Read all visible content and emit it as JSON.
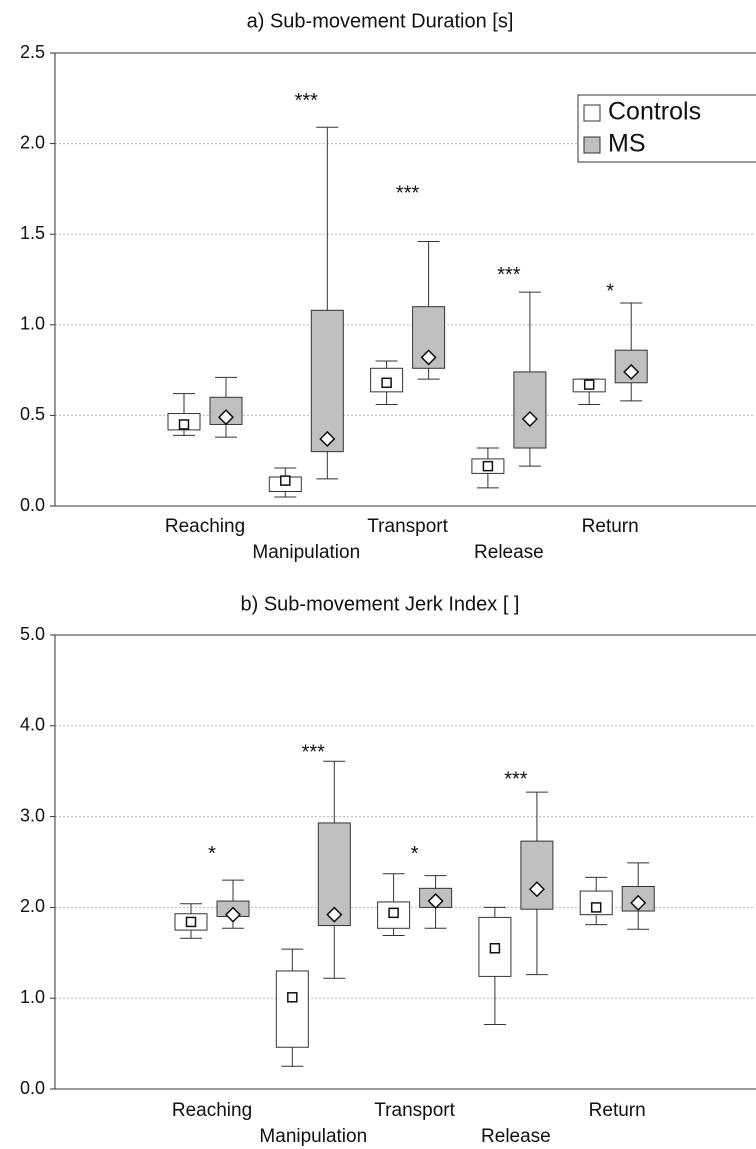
{
  "chart_data": [
    {
      "type": "box",
      "title": "a) Sub-movement Duration [s]",
      "categories": [
        "Reaching",
        "Manipulation",
        "Transport",
        "Release",
        "Return"
      ],
      "ylim": [
        0,
        2.5
      ],
      "yticks": [
        {
          "value": 0,
          "label": "0.0"
        },
        {
          "value": 0.5,
          "label": "0.5"
        },
        {
          "value": 1,
          "label": "1.0"
        },
        {
          "value": 1.5,
          "label": "1.5"
        },
        {
          "value": 2,
          "label": "2.0"
        },
        {
          "value": 2.5,
          "label": "2.5"
        }
      ],
      "grid": true,
      "legend": "top-right",
      "series": [
        {
          "name": "Controls",
          "color": "#ffffff",
          "marker": "square",
          "low": [
            0.39,
            0.05,
            0.56,
            0.1,
            0.56
          ],
          "q1": [
            0.42,
            0.08,
            0.63,
            0.18,
            0.63
          ],
          "mid": [
            0.45,
            0.14,
            0.68,
            0.22,
            0.67
          ],
          "q3": [
            0.51,
            0.16,
            0.76,
            0.26,
            0.7
          ],
          "high": [
            0.62,
            0.21,
            0.8,
            0.32,
            0.7
          ]
        },
        {
          "name": "MS",
          "color": "#c0c0c0",
          "marker": "diamond",
          "low": [
            0.38,
            0.15,
            0.7,
            0.22,
            0.58
          ],
          "q1": [
            0.45,
            0.3,
            0.76,
            0.32,
            0.68
          ],
          "mid": [
            0.49,
            0.37,
            0.82,
            0.48,
            0.74
          ],
          "q3": [
            0.6,
            1.08,
            1.1,
            0.74,
            0.86
          ],
          "high": [
            0.71,
            2.09,
            1.46,
            1.18,
            1.12
          ]
        }
      ],
      "annotations": [
        {
          "text": "***",
          "category": "Manipulation",
          "y": 2.23
        },
        {
          "text": "***",
          "category": "Transport",
          "y": 1.72
        },
        {
          "text": "***",
          "category": "Release",
          "y": 1.27
        },
        {
          "text": "*",
          "category": "Return",
          "y": 1.18
        }
      ]
    },
    {
      "type": "box",
      "title": "b) Sub-movement Jerk Index [ ]",
      "categories": [
        "Reaching",
        "Manipulation",
        "Transport",
        "Release",
        "Return"
      ],
      "ylim": [
        0,
        5
      ],
      "yticks": [
        {
          "value": 0,
          "label": "0.0"
        },
        {
          "value": 1,
          "label": "1.0"
        },
        {
          "value": 2,
          "label": "2.0"
        },
        {
          "value": 3,
          "label": "3.0"
        },
        {
          "value": 4,
          "label": "4.0"
        },
        {
          "value": 5,
          "label": "5.0"
        }
      ],
      "grid": true,
      "series": [
        {
          "color": "#ffffff",
          "marker": "square",
          "low": [
            1.66,
            0.25,
            1.69,
            0.71,
            1.81
          ],
          "q1": [
            1.75,
            0.46,
            1.77,
            1.24,
            1.92
          ],
          "mid": [
            1.84,
            1.01,
            1.94,
            1.55,
            2.0
          ],
          "q3": [
            1.93,
            1.3,
            2.06,
            1.89,
            2.18
          ],
          "high": [
            2.04,
            1.54,
            2.37,
            2.0,
            2.33
          ]
        },
        {
          "color": "#c0c0c0",
          "marker": "diamond",
          "low": [
            1.77,
            1.22,
            1.77,
            1.26,
            1.76
          ],
          "q1": [
            1.9,
            1.8,
            2.0,
            1.98,
            1.96
          ],
          "mid": [
            1.92,
            1.92,
            2.07,
            2.2,
            2.05
          ],
          "q3": [
            2.07,
            2.93,
            2.21,
            2.73,
            2.23
          ],
          "high": [
            2.3,
            3.61,
            2.35,
            3.27,
            2.49
          ]
        }
      ],
      "annotations": [
        {
          "text": "*",
          "category": "Reaching",
          "y": 2.58
        },
        {
          "text": "***",
          "category": "Manipulation",
          "y": 3.7
        },
        {
          "text": "*",
          "category": "Transport",
          "y": 2.58
        },
        {
          "text": "***",
          "category": "Release",
          "y": 3.4
        }
      ]
    }
  ]
}
